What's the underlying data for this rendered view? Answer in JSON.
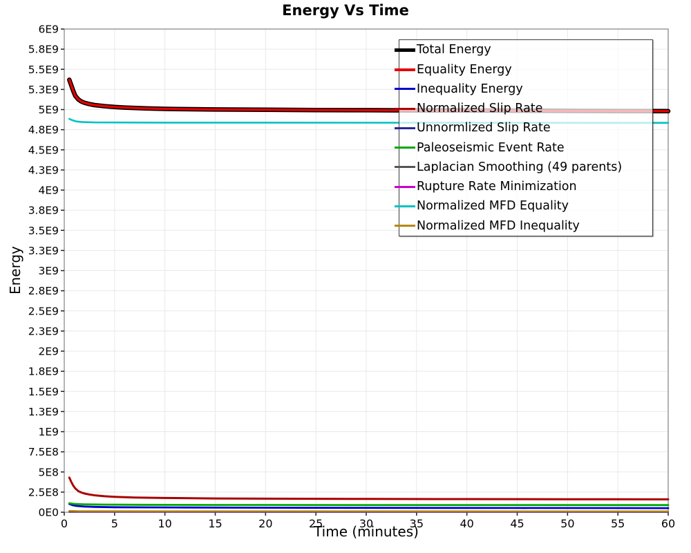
{
  "chart_data": {
    "type": "line",
    "title": "Energy Vs Time",
    "xlabel": "Time (minutes)",
    "ylabel": "Energy",
    "xlim": [
      0,
      60
    ],
    "ylim": [
      0,
      6000000000.0
    ],
    "grid": true,
    "legend_position": "top-right-inside",
    "x_ticks": [
      {
        "v": 0,
        "label": "0"
      },
      {
        "v": 5,
        "label": "5"
      },
      {
        "v": 10,
        "label": "10"
      },
      {
        "v": 15,
        "label": "15"
      },
      {
        "v": 20,
        "label": "20"
      },
      {
        "v": 25,
        "label": "25"
      },
      {
        "v": 30,
        "label": "30"
      },
      {
        "v": 35,
        "label": "35"
      },
      {
        "v": 40,
        "label": "40"
      },
      {
        "v": 45,
        "label": "45"
      },
      {
        "v": 50,
        "label": "50"
      },
      {
        "v": 55,
        "label": "55"
      },
      {
        "v": 60,
        "label": "60"
      }
    ],
    "y_ticks": [
      {
        "v": 6000000000.0,
        "label": "6E9"
      },
      {
        "v": 5750000000.0,
        "label": "5.8E9"
      },
      {
        "v": 5500000000.0,
        "label": "5.5E9"
      },
      {
        "v": 5250000000.0,
        "label": "5.3E9"
      },
      {
        "v": 5000000000.0,
        "label": "5E9"
      },
      {
        "v": 4750000000.0,
        "label": "4.8E9"
      },
      {
        "v": 4500000000.0,
        "label": "4.5E9"
      },
      {
        "v": 4250000000.0,
        "label": "4.3E9"
      },
      {
        "v": 4000000000.0,
        "label": "4E9"
      },
      {
        "v": 3750000000.0,
        "label": "3.8E9"
      },
      {
        "v": 3500000000.0,
        "label": "3.5E9"
      },
      {
        "v": 3250000000.0,
        "label": "3.3E9"
      },
      {
        "v": 3000000000.0,
        "label": "3E9"
      },
      {
        "v": 2750000000.0,
        "label": "2.8E9"
      },
      {
        "v": 2500000000.0,
        "label": "2.5E9"
      },
      {
        "v": 2250000000.0,
        "label": "2.3E9"
      },
      {
        "v": 2000000000.0,
        "label": "2E9"
      },
      {
        "v": 1750000000.0,
        "label": "1.8E9"
      },
      {
        "v": 1500000000.0,
        "label": "1.5E9"
      },
      {
        "v": 1250000000.0,
        "label": "1.3E9"
      },
      {
        "v": 1000000000.0,
        "label": "1E9"
      },
      {
        "v": 750000000.0,
        "label": "7.5E8"
      },
      {
        "v": 500000000.0,
        "label": "5E8"
      },
      {
        "v": 250000000.0,
        "label": "2.5E8"
      },
      {
        "v": 0,
        "label": "0E0"
      }
    ],
    "draw_order": [
      0,
      1,
      8,
      7,
      6,
      4,
      9,
      2,
      5,
      3
    ],
    "series": [
      {
        "name": "Total Energy",
        "color": "#000000",
        "width": 6.5,
        "swatch_h": 5,
        "points": [
          [
            0.5,
            5370000000.0
          ],
          [
            0.7,
            5300000000.0
          ],
          [
            0.9,
            5230000000.0
          ],
          [
            1.1,
            5170000000.0
          ],
          [
            1.4,
            5125000000.0
          ],
          [
            1.7,
            5100000000.0
          ],
          [
            2,
            5085000000.0
          ],
          [
            2.5,
            5068000000.0
          ],
          [
            3,
            5056000000.0
          ],
          [
            4,
            5042000000.0
          ],
          [
            5,
            5032000000.0
          ],
          [
            6,
            5025000000.0
          ],
          [
            8,
            5015000000.0
          ],
          [
            10,
            5009000000.0
          ],
          [
            12,
            5005000000.0
          ],
          [
            15,
            5001000000.0
          ],
          [
            20,
            4997000000.0
          ],
          [
            25,
            4994000000.0
          ],
          [
            30,
            4992000000.0
          ],
          [
            35,
            4990000000.0
          ],
          [
            40,
            4988000000.0
          ],
          [
            45,
            4986000000.0
          ],
          [
            50,
            4984000000.0
          ],
          [
            55,
            4982000000.0
          ],
          [
            60,
            4980000000.0
          ]
        ]
      },
      {
        "name": "Equality Energy",
        "color": "#e60000",
        "width": 3.4,
        "swatch_h": 4,
        "points": [
          [
            0.5,
            5370000000.0
          ],
          [
            0.7,
            5300000000.0
          ],
          [
            0.9,
            5230000000.0
          ],
          [
            1.1,
            5170000000.0
          ],
          [
            1.4,
            5125000000.0
          ],
          [
            1.7,
            5100000000.0
          ],
          [
            2,
            5085000000.0
          ],
          [
            2.5,
            5068000000.0
          ],
          [
            3,
            5056000000.0
          ],
          [
            4,
            5042000000.0
          ],
          [
            5,
            5032000000.0
          ],
          [
            6,
            5025000000.0
          ],
          [
            8,
            5015000000.0
          ],
          [
            10,
            5009000000.0
          ],
          [
            12,
            5005000000.0
          ],
          [
            15,
            5001000000.0
          ],
          [
            20,
            4997000000.0
          ],
          [
            25,
            4994000000.0
          ],
          [
            30,
            4992000000.0
          ],
          [
            35,
            4990000000.0
          ],
          [
            40,
            4988000000.0
          ],
          [
            45,
            4986000000.0
          ],
          [
            50,
            4984000000.0
          ],
          [
            55,
            4982000000.0
          ],
          [
            60,
            4980000000.0
          ]
        ]
      },
      {
        "name": "Inequality Energy",
        "color": "#0000cc",
        "width": 2.8,
        "swatch_h": 3,
        "points": [
          [
            0.5,
            102000000.0
          ],
          [
            0.8,
            88000000.0
          ],
          [
            1.2,
            78000000.0
          ],
          [
            2,
            70000000.0
          ],
          [
            3,
            66000000.0
          ],
          [
            5,
            62000000.0
          ],
          [
            8,
            60000000.0
          ],
          [
            12,
            58000000.0
          ],
          [
            20,
            56000000.0
          ],
          [
            30,
            54000000.0
          ],
          [
            45,
            52000000.0
          ],
          [
            60,
            51000000.0
          ]
        ]
      },
      {
        "name": "Normalized Slip Rate",
        "color": "#aa0000",
        "width": 3.0,
        "swatch_h": 3,
        "points": [
          [
            0.5,
            430000000.0
          ],
          [
            0.7,
            375000000.0
          ],
          [
            0.9,
            330000000.0
          ],
          [
            1.1,
            295000000.0
          ],
          [
            1.4,
            262000000.0
          ],
          [
            1.7,
            245000000.0
          ],
          [
            2,
            233000000.0
          ],
          [
            2.5,
            220000000.0
          ],
          [
            3,
            210000000.0
          ],
          [
            4,
            198000000.0
          ],
          [
            5,
            191000000.0
          ],
          [
            7,
            183000000.0
          ],
          [
            10,
            177000000.0
          ],
          [
            15,
            171000000.0
          ],
          [
            20,
            168000000.0
          ],
          [
            30,
            165000000.0
          ],
          [
            40,
            163000000.0
          ],
          [
            50,
            161000000.0
          ],
          [
            60,
            160000000.0
          ]
        ]
      },
      {
        "name": "Unnormlized Slip Rate",
        "color": "#28289a",
        "width": 2.0,
        "swatch_h": 3,
        "points": [
          [
            0.5,
            8000000.0
          ],
          [
            10,
            6000000.0
          ],
          [
            60,
            5000000.0
          ]
        ]
      },
      {
        "name": "Paleoseismic Event Rate",
        "color": "#00a800",
        "width": 2.8,
        "swatch_h": 3,
        "points": [
          [
            0.5,
            112000000.0
          ],
          [
            1,
            103000000.0
          ],
          [
            2,
            98000000.0
          ],
          [
            4,
            94000000.0
          ],
          [
            8,
            92000000.0
          ],
          [
            15,
            90000000.0
          ],
          [
            30,
            89000000.0
          ],
          [
            60,
            88000000.0
          ]
        ]
      },
      {
        "name": "Laplacian Smoothing (49 parents)",
        "color": "#555555",
        "width": 2.0,
        "swatch_h": 3,
        "points": [
          [
            0.5,
            4000000.0
          ],
          [
            60,
            3000000.0
          ]
        ]
      },
      {
        "name": "Rupture Rate Minimization",
        "color": "#cc00cc",
        "width": 2.0,
        "swatch_h": 3,
        "points": [
          [
            0.5,
            2000000.0
          ],
          [
            60,
            1500000.0
          ]
        ]
      },
      {
        "name": "Normalized MFD Equality",
        "color": "#00c2c2",
        "width": 2.6,
        "swatch_h": 3,
        "points": [
          [
            0.5,
            4885000000.0
          ],
          [
            0.8,
            4868000000.0
          ],
          [
            1.2,
            4852000000.0
          ],
          [
            1.8,
            4845000000.0
          ],
          [
            3,
            4840000000.0
          ],
          [
            10,
            4838000000.0
          ],
          [
            60,
            4835000000.0
          ]
        ]
      },
      {
        "name": "Normalized MFD Inequality",
        "color": "#b8860b",
        "width": 2.4,
        "swatch_h": 3,
        "points": [
          [
            0.5,
            16000000.0
          ],
          [
            1.5,
            13500000.0
          ],
          [
            5,
            12500000.0
          ],
          [
            60,
            11000000.0
          ]
        ]
      }
    ],
    "style": {
      "grid_color": "#e8e8e8",
      "border_color": "#8a8a8a",
      "tick_color": "#222222",
      "tick_label_size": 15.5,
      "x_tick_label_size": 16
    }
  }
}
